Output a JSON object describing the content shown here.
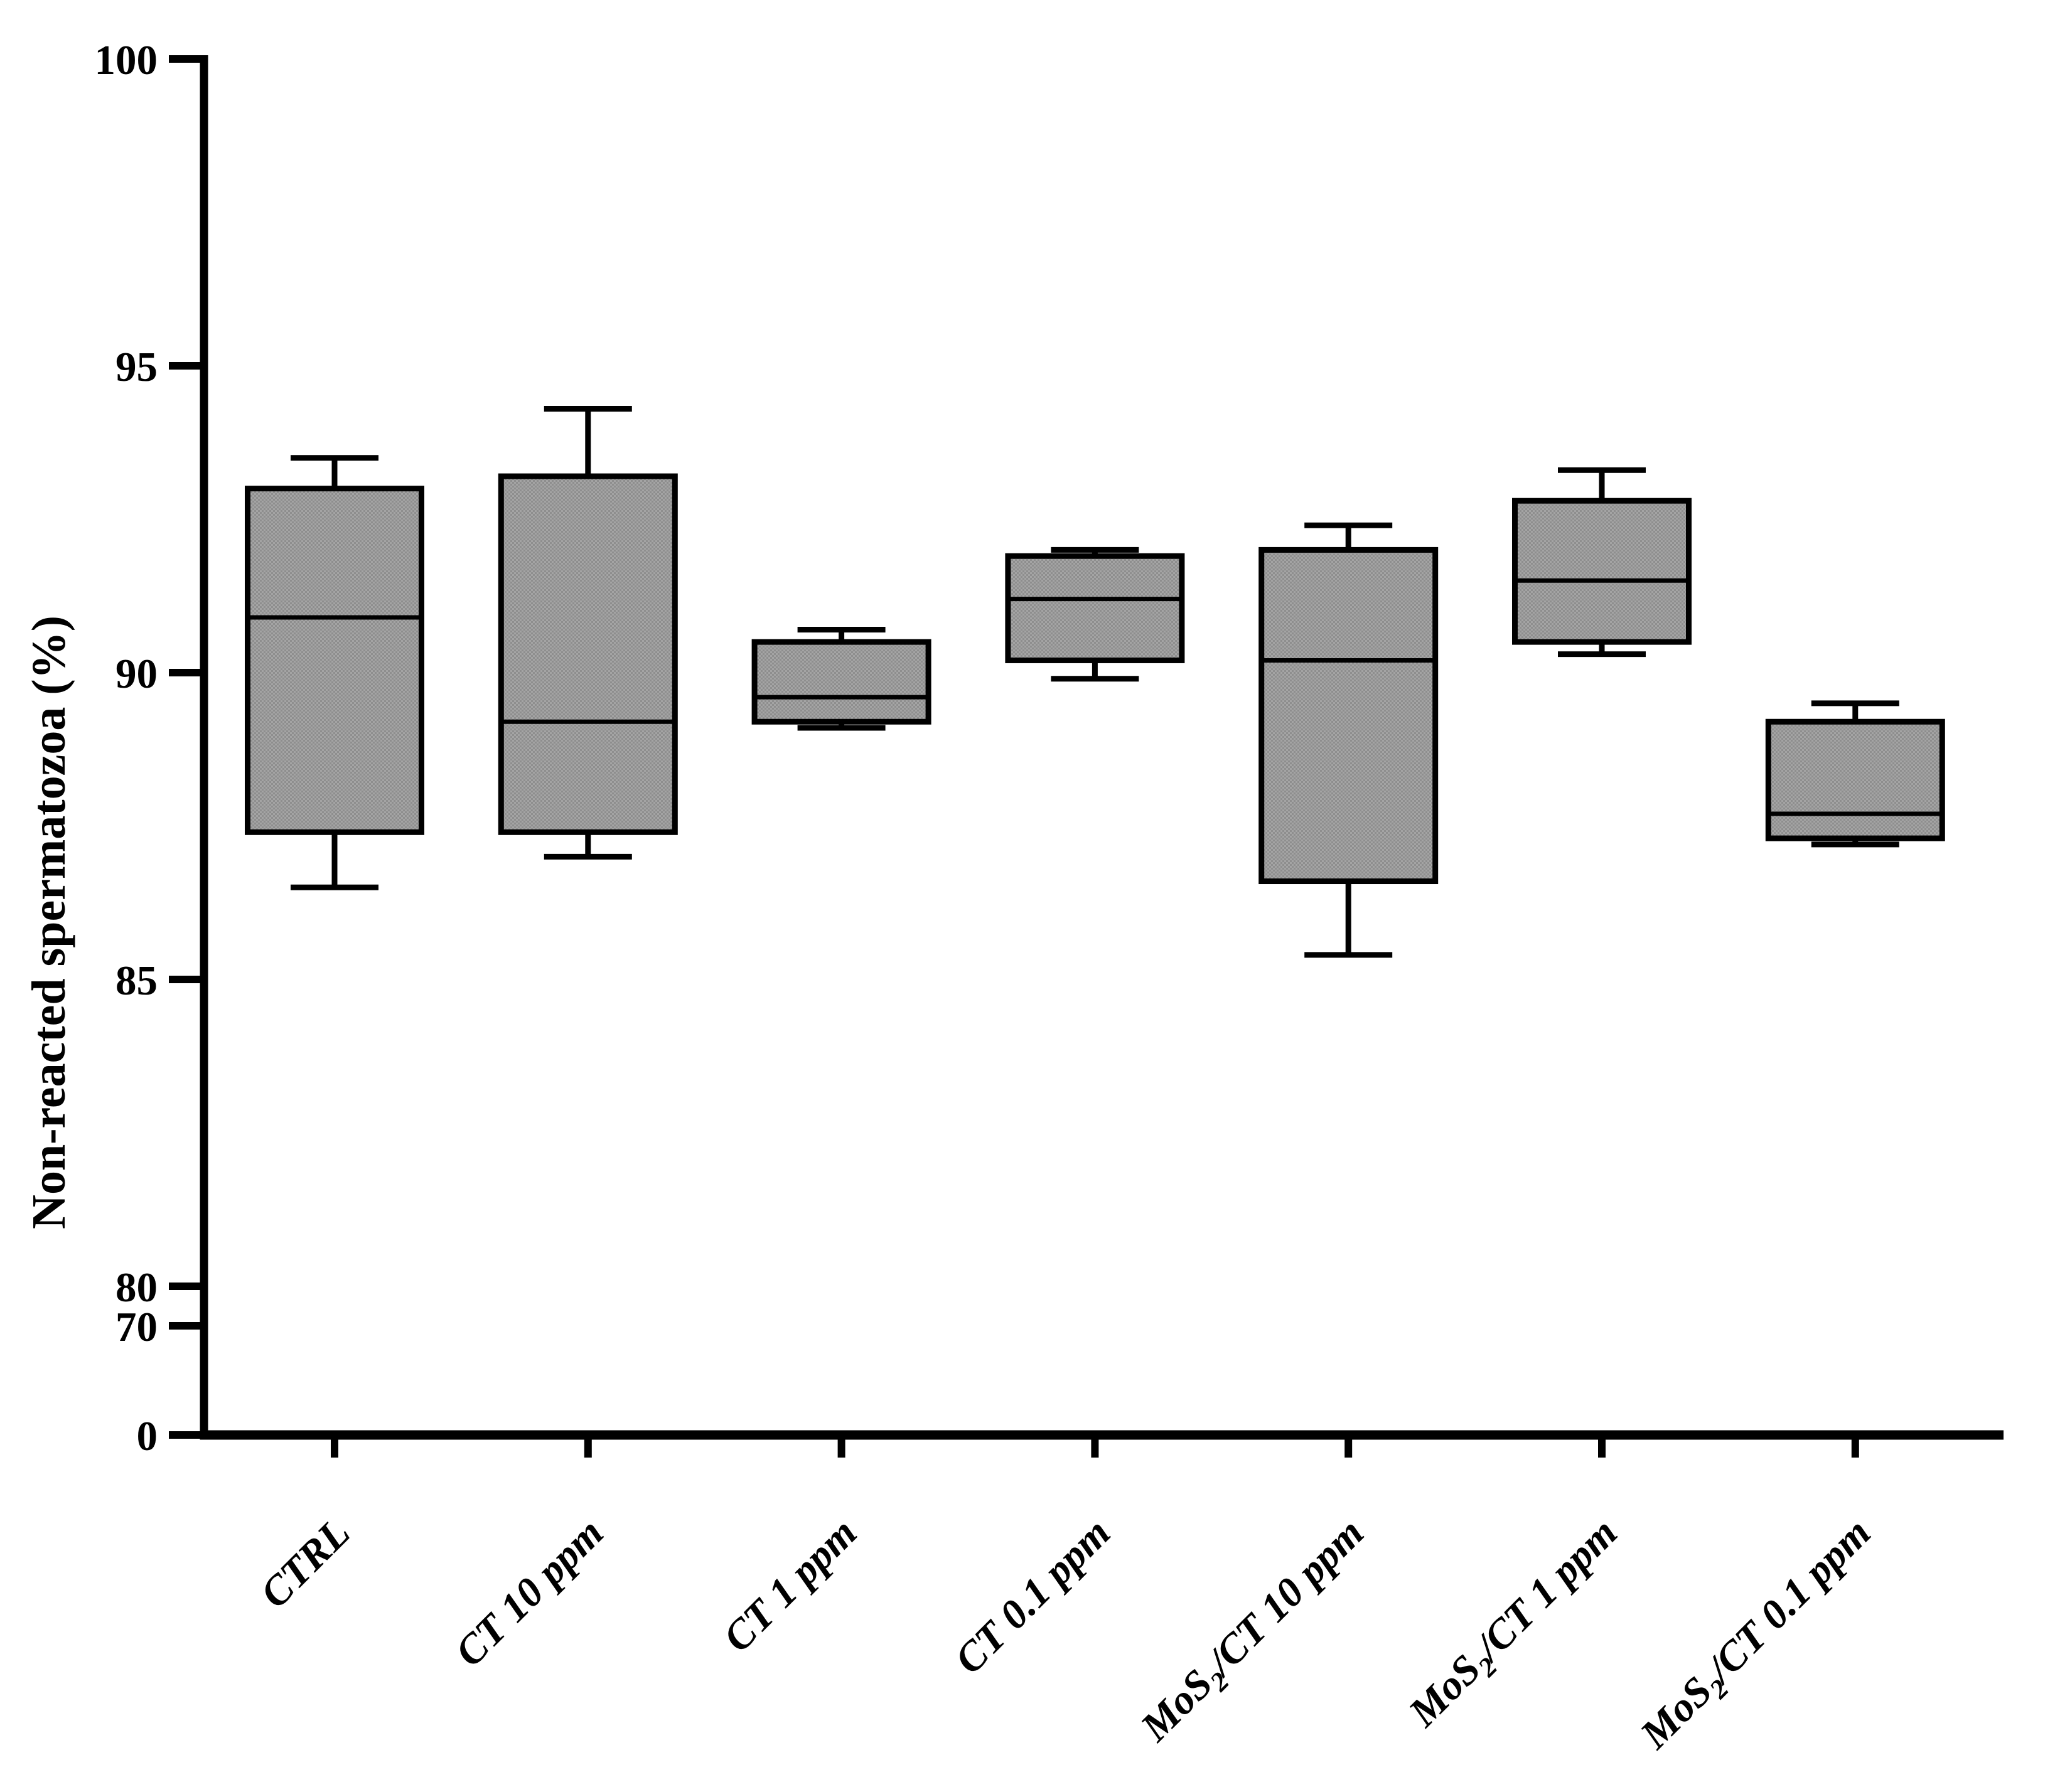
{
  "figure": {
    "background_color": "#ffffff",
    "axis_color": "#000000",
    "box_fill_color": "#9a9a9a",
    "box_fill_pattern_light": "#a4a4a4",
    "box_fill_pattern_dark": "#8e8e8e",
    "box_stroke_color": "#000000"
  },
  "chart_data": {
    "type": "box",
    "title": "",
    "xlabel": "",
    "ylabel": "Non-reacted spermatozoa (%)",
    "y_axis": {
      "ticks": [
        0,
        70,
        80,
        85,
        90,
        95,
        100
      ],
      "tick_labels": [
        "0",
        "70",
        "80",
        "85",
        "90",
        "95",
        "100"
      ],
      "breaks": [
        {
          "between": [
            0,
            70
          ]
        },
        {
          "between": [
            70,
            80
          ]
        }
      ],
      "linear_range_top": [
        80,
        100
      ]
    },
    "categories": [
      "CTRL",
      "CT 10 ppm",
      "CT 1 ppm",
      "CT 0.1 ppm",
      "MoS2/CT 10 ppm",
      "MoS2/CT 1 ppm",
      "MoS2/CT 0.1 ppm"
    ],
    "category_label_parts": [
      [
        "CTRL"
      ],
      [
        "CT 10 ppm"
      ],
      [
        "CT 1 ppm"
      ],
      [
        "CT 0.1 ppm"
      ],
      [
        "MoS",
        {
          "sub": "2"
        },
        "/CT 10 ppm"
      ],
      [
        "MoS",
        {
          "sub": "2"
        },
        "/CT 1 ppm"
      ],
      [
        "MoS",
        {
          "sub": "2"
        },
        "/CT 0.1 ppm"
      ]
    ],
    "series": [
      {
        "name": "CTRL",
        "whisker_low": 86.5,
        "q1": 87.4,
        "median": 90.9,
        "q3": 93.0,
        "whisker_high": 93.5
      },
      {
        "name": "CT 10 ppm",
        "whisker_low": 87.0,
        "q1": 87.4,
        "median": 89.2,
        "q3": 93.2,
        "whisker_high": 94.3
      },
      {
        "name": "CT 1 ppm",
        "whisker_low": 89.1,
        "q1": 89.2,
        "median": 89.6,
        "q3": 90.5,
        "whisker_high": 90.7
      },
      {
        "name": "CT 0.1 ppm",
        "whisker_low": 89.9,
        "q1": 90.2,
        "median": 91.2,
        "q3": 91.9,
        "whisker_high": 92.0
      },
      {
        "name": "MoS2/CT 10 ppm",
        "whisker_low": 85.4,
        "q1": 86.6,
        "median": 90.2,
        "q3": 92.0,
        "whisker_high": 92.4
      },
      {
        "name": "MoS2/CT 1 ppm",
        "whisker_low": 90.3,
        "q1": 90.5,
        "median": 91.5,
        "q3": 92.8,
        "whisker_high": 93.3
      },
      {
        "name": "MoS2/CT 0.1 ppm",
        "whisker_low": 87.2,
        "q1": 87.3,
        "median": 87.7,
        "q3": 89.2,
        "whisker_high": 89.5
      }
    ],
    "legend": null,
    "grid": false
  }
}
